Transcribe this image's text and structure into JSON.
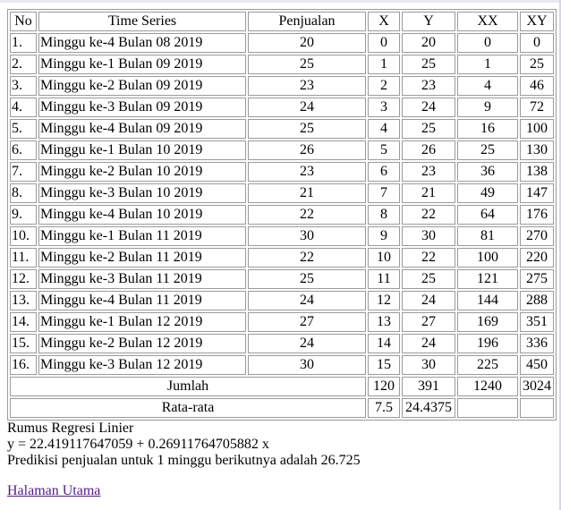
{
  "table": {
    "headers": [
      "No",
      "Time Series",
      "Penjualan",
      "X",
      "Y",
      "XX",
      "XY"
    ],
    "rows": [
      [
        "1.",
        "Minggu ke-4 Bulan 08 2019",
        "20",
        "0",
        "20",
        "0",
        "0"
      ],
      [
        "2.",
        "Minggu ke-1 Bulan 09 2019",
        "25",
        "1",
        "25",
        "1",
        "25"
      ],
      [
        "3.",
        "Minggu ke-2 Bulan 09 2019",
        "23",
        "2",
        "23",
        "4",
        "46"
      ],
      [
        "4.",
        "Minggu ke-3 Bulan 09 2019",
        "24",
        "3",
        "24",
        "9",
        "72"
      ],
      [
        "5.",
        "Minggu ke-4 Bulan 09 2019",
        "25",
        "4",
        "25",
        "16",
        "100"
      ],
      [
        "6.",
        "Minggu ke-1 Bulan 10 2019",
        "26",
        "5",
        "26",
        "25",
        "130"
      ],
      [
        "7.",
        "Minggu ke-2 Bulan 10 2019",
        "23",
        "6",
        "23",
        "36",
        "138"
      ],
      [
        "8.",
        "Minggu ke-3 Bulan 10 2019",
        "21",
        "7",
        "21",
        "49",
        "147"
      ],
      [
        "9.",
        "Minggu ke-4 Bulan 10 2019",
        "22",
        "8",
        "22",
        "64",
        "176"
      ],
      [
        "10.",
        "Minggu ke-1 Bulan 11 2019",
        "30",
        "9",
        "30",
        "81",
        "270"
      ],
      [
        "11.",
        "Minggu ke-2 Bulan 11 2019",
        "22",
        "10",
        "22",
        "100",
        "220"
      ],
      [
        "12.",
        "Minggu ke-3 Bulan 11 2019",
        "25",
        "11",
        "25",
        "121",
        "275"
      ],
      [
        "13.",
        "Minggu ke-4 Bulan 11 2019",
        "24",
        "12",
        "24",
        "144",
        "288"
      ],
      [
        "14.",
        "Minggu ke-1 Bulan 12 2019",
        "27",
        "13",
        "27",
        "169",
        "351"
      ],
      [
        "15.",
        "Minggu ke-2 Bulan 12 2019",
        "24",
        "14",
        "24",
        "196",
        "336"
      ],
      [
        "16.",
        "Minggu ke-3 Bulan 12 2019",
        "30",
        "15",
        "30",
        "225",
        "450"
      ]
    ],
    "jumlah": {
      "label": "Jumlah",
      "x": "120",
      "y": "391",
      "xx": "1240",
      "xy": "3024"
    },
    "rata": {
      "label": "Rata-rata",
      "x": "7.5",
      "y": "24.4375",
      "xx": "",
      "xy": ""
    }
  },
  "result": {
    "title": "Rumus Regresi Linier",
    "equation": "y = 22.419117647059 + 0.26911764705882 x",
    "prediction": "Predikisi penjualan untuk 1 minggu berikutnya adalah 26.725"
  },
  "link": {
    "label": "Halaman Utama"
  }
}
